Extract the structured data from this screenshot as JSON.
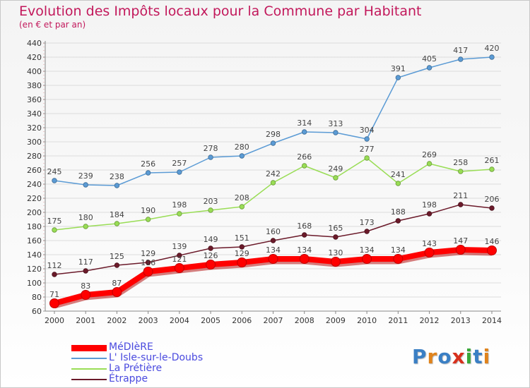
{
  "header": {
    "title": "Evolution des Impôts locaux pour la Commune par Habitant",
    "subtitle": "(en € et par an)"
  },
  "logo": {
    "text": "Proxiti",
    "letter_colors": [
      "#3a7fc4",
      "#e0831c",
      "#3a7fc4",
      "#d8301c",
      "#3aa83a",
      "#3a7fc4",
      "#e0831c"
    ]
  },
  "chart_data": {
    "type": "line",
    "title": "Evolution des Impôts locaux pour la Commune par Habitant",
    "subtitle": "(en € et par an)",
    "xlabel": "",
    "ylabel": "",
    "x": [
      "2000",
      "2001",
      "2002",
      "2003",
      "2004",
      "2005",
      "2006",
      "2007",
      "2008",
      "2009",
      "2010",
      "2011",
      "2012",
      "2013",
      "2014"
    ],
    "ylim": [
      60,
      440
    ],
    "ytick_step": 20,
    "grid": true,
    "legend_position": "bottom-left",
    "series": [
      {
        "name": "MéDIèRE",
        "color": "#ff0000",
        "emphasis": true,
        "values": [
          71,
          83,
          87,
          116,
          121,
          126,
          129,
          134,
          134,
          130,
          134,
          134,
          143,
          147,
          146
        ],
        "labels": [
          "71",
          "83",
          "87",
          "116",
          "121",
          "126",
          "129",
          "134",
          "134",
          "130",
          "134",
          "134",
          "143",
          "147",
          "146"
        ]
      },
      {
        "name": "L' Isle-sur-le-Doubs",
        "color": "#5b9bd5",
        "values": [
          245,
          239,
          238,
          256,
          257,
          278,
          280,
          298,
          314,
          313,
          304,
          391,
          405,
          417,
          420
        ]
      },
      {
        "name": "La Prétière",
        "color": "#99dd55",
        "values": [
          175,
          180,
          184,
          190,
          198,
          203,
          208,
          242,
          266,
          249,
          277,
          241,
          269,
          258,
          261
        ]
      },
      {
        "name": "Étrappe",
        "color": "#6b1a2a",
        "values": [
          112,
          117,
          125,
          129,
          139,
          149,
          151,
          160,
          168,
          165,
          173,
          188,
          198,
          211,
          206
        ]
      }
    ]
  }
}
